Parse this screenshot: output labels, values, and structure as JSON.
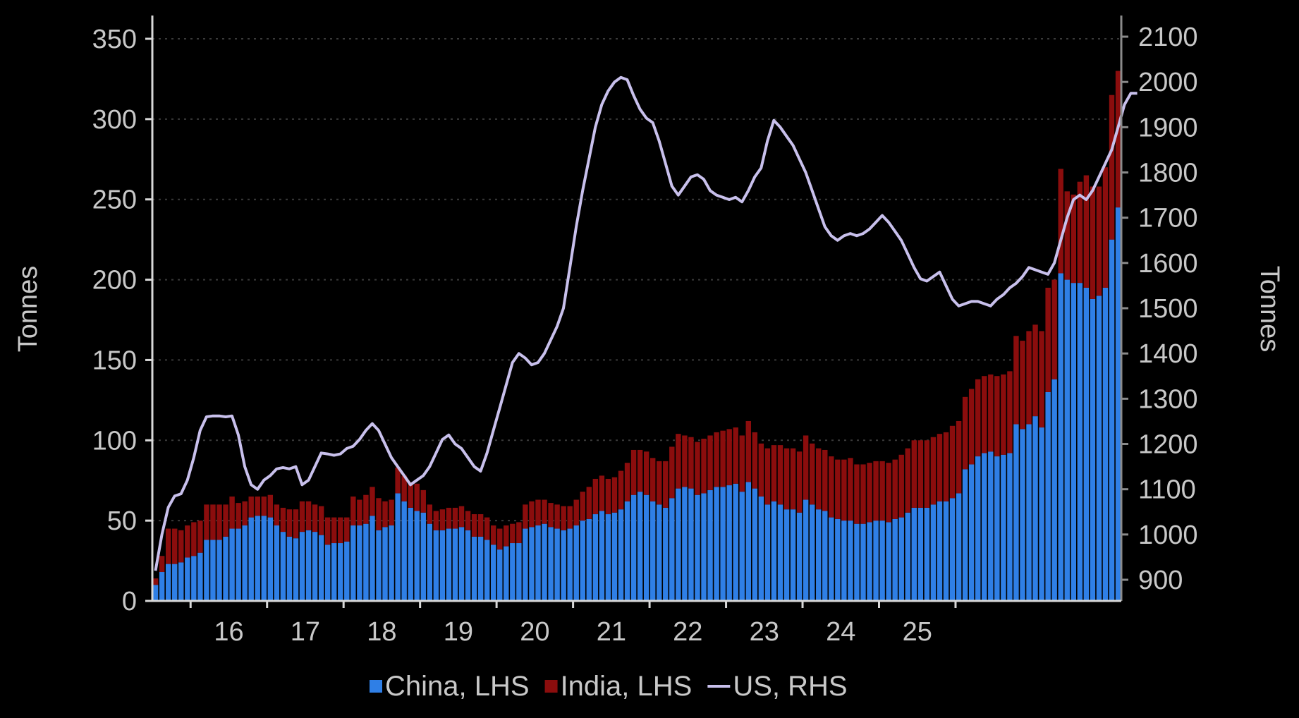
{
  "chart_data": {
    "type": "bar",
    "stacked": true,
    "x_start": "2015-07",
    "frequency": "monthly",
    "x_tick_labels": [
      "16",
      "17",
      "18",
      "19",
      "20",
      "21",
      "22",
      "23",
      "24",
      "25"
    ],
    "y_left": {
      "label": "Tonnes",
      "ylim": [
        0,
        350
      ],
      "ticks": [
        0,
        50,
        100,
        150,
        200,
        250,
        300,
        350
      ]
    },
    "y_right": {
      "label": "Tonnes",
      "ylim": [
        860,
        2100
      ],
      "ticks": [
        900,
        1000,
        1100,
        1200,
        1300,
        1400,
        1500,
        1600,
        1700,
        1800,
        1900,
        2000,
        2100
      ]
    },
    "grid": "horizontal dotted",
    "legend_position": "bottom",
    "colors": {
      "china": "#2f7fe6",
      "india": "#8b0d0d",
      "us": "#c8c0ec",
      "axis": "#d8d8d8",
      "text": "#c8c8c8"
    },
    "series": [
      {
        "name": "China, LHS",
        "axis": "left",
        "type": "bar",
        "values": [
          10,
          18,
          23,
          23,
          24,
          27,
          28,
          30,
          38,
          38,
          38,
          40,
          45,
          45,
          47,
          52,
          53,
          53,
          52,
          47,
          43,
          40,
          39,
          43,
          44,
          43,
          41,
          35,
          36,
          36,
          37,
          47,
          47,
          48,
          53,
          44,
          46,
          47,
          67,
          62,
          58,
          56,
          55,
          48,
          44,
          44,
          45,
          45,
          46,
          44,
          40,
          40,
          38,
          35,
          32,
          34,
          36,
          36,
          45,
          46,
          47,
          48,
          46,
          45,
          44,
          45,
          47,
          50,
          51,
          54,
          56,
          54,
          55,
          57,
          62,
          66,
          68,
          66,
          62,
          60,
          58,
          64,
          70,
          71,
          70,
          66,
          67,
          69,
          71,
          71,
          72,
          73,
          68,
          74,
          70,
          65,
          60,
          62,
          60,
          57,
          57,
          55,
          63,
          60,
          57,
          56,
          52,
          51,
          50,
          50,
          48,
          48,
          49,
          50,
          50,
          49,
          51,
          52,
          55,
          58,
          58,
          58,
          60,
          62,
          62,
          64,
          67,
          82,
          85,
          90,
          92,
          93,
          90,
          91,
          92,
          110,
          107,
          110,
          115,
          108,
          130,
          138,
          204,
          200,
          198,
          198,
          195,
          188,
          190,
          195,
          225,
          245
        ]
      },
      {
        "name": "India, LHS",
        "axis": "left",
        "type": "bar",
        "values": [
          4,
          10,
          22,
          22,
          20,
          20,
          21,
          20,
          22,
          22,
          22,
          20,
          20,
          16,
          15,
          13,
          12,
          12,
          14,
          13,
          15,
          17,
          18,
          19,
          18,
          17,
          18,
          17,
          16,
          16,
          15,
          18,
          16,
          18,
          18,
          20,
          16,
          16,
          16,
          16,
          16,
          17,
          14,
          12,
          12,
          13,
          13,
          13,
          13,
          12,
          14,
          14,
          14,
          12,
          13,
          13,
          12,
          13,
          15,
          16,
          16,
          15,
          15,
          15,
          15,
          14,
          16,
          18,
          20,
          22,
          22,
          22,
          22,
          24,
          24,
          28,
          26,
          27,
          27,
          27,
          29,
          32,
          34,
          32,
          32,
          33,
          34,
          34,
          34,
          35,
          35,
          35,
          35,
          38,
          35,
          33,
          35,
          35,
          37,
          38,
          38,
          38,
          40,
          38,
          38,
          38,
          38,
          37,
          38,
          39,
          37,
          37,
          37,
          37,
          37,
          37,
          37,
          39,
          40,
          42,
          42,
          42,
          42,
          42,
          43,
          45,
          45,
          45,
          47,
          48,
          48,
          48,
          50,
          50,
          51,
          55,
          55,
          58,
          57,
          60,
          65,
          62,
          65,
          55,
          55,
          63,
          70,
          70,
          68,
          75,
          90,
          85
        ]
      },
      {
        "name": "US, RHS",
        "axis": "right",
        "type": "line",
        "values": [
          920,
          1000,
          1060,
          1085,
          1090,
          1120,
          1170,
          1230,
          1260,
          1262,
          1262,
          1260,
          1262,
          1220,
          1150,
          1110,
          1100,
          1120,
          1130,
          1145,
          1148,
          1145,
          1150,
          1110,
          1120,
          1150,
          1180,
          1178,
          1175,
          1178,
          1190,
          1195,
          1210,
          1230,
          1245,
          1230,
          1200,
          1170,
          1150,
          1130,
          1110,
          1120,
          1130,
          1150,
          1180,
          1210,
          1220,
          1200,
          1190,
          1170,
          1150,
          1140,
          1180,
          1230,
          1280,
          1330,
          1380,
          1400,
          1390,
          1375,
          1380,
          1400,
          1430,
          1460,
          1500,
          1590,
          1680,
          1760,
          1830,
          1900,
          1950,
          1980,
          2000,
          2010,
          2005,
          1970,
          1940,
          1920,
          1910,
          1870,
          1820,
          1770,
          1750,
          1770,
          1790,
          1795,
          1785,
          1760,
          1750,
          1745,
          1740,
          1745,
          1735,
          1760,
          1790,
          1810,
          1870,
          1915,
          1900,
          1880,
          1860,
          1830,
          1800,
          1760,
          1720,
          1680,
          1660,
          1650,
          1660,
          1665,
          1660,
          1665,
          1675,
          1690,
          1705,
          1690,
          1670,
          1650,
          1620,
          1590,
          1565,
          1560,
          1570,
          1580,
          1550,
          1520,
          1505,
          1510,
          1515,
          1515,
          1510,
          1505,
          1520,
          1530,
          1545,
          1555,
          1570,
          1590,
          1585,
          1580,
          1575,
          1600,
          1650,
          1700,
          1740,
          1750,
          1740,
          1760,
          1790,
          1820,
          1850,
          1900,
          1950,
          1975,
          1975
        ]
      }
    ]
  },
  "legend": [
    {
      "label": "China, LHS",
      "color": "#2f7fe6",
      "kind": "square"
    },
    {
      "label": "India, LHS",
      "color": "#8b0d0d",
      "kind": "square"
    },
    {
      "label": "US, RHS",
      "color": "#c8c0ec",
      "kind": "line"
    }
  ]
}
